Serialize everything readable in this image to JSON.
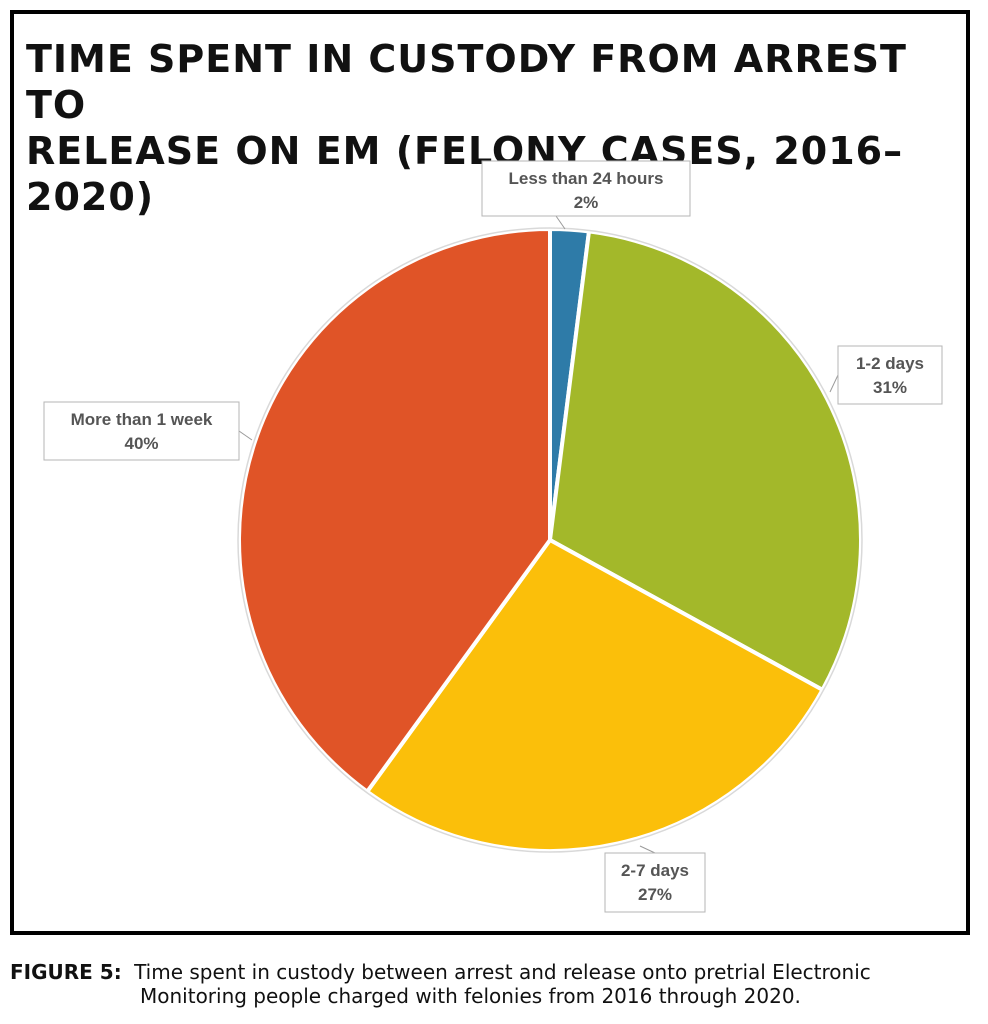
{
  "figure": {
    "title_line1": "TIME SPENT IN CUSTODY FROM ARREST TO",
    "title_line2": "RELEASE ON EM (FELONY CASES, 2016–2020)",
    "caption_label": "FIGURE 5:",
    "caption_line1": "Time spent in custody between arrest and release onto pretrial Electronic",
    "caption_line2": "Monitoring people charged with felonies from 2016 through 2020."
  },
  "chart_data": {
    "type": "pie",
    "title": "TIME SPENT IN CUSTODY FROM ARREST TO RELEASE ON EM (FELONY CASES, 2016–2020)",
    "slices": [
      {
        "label": "Less than 24 hours",
        "value": 2,
        "value_label": "2%",
        "color": "#2e7ba8"
      },
      {
        "label": "1-2 days",
        "value": 31,
        "value_label": "31%",
        "color": "#a3b82a"
      },
      {
        "label": "2-7 days",
        "value": 27,
        "value_label": "27%",
        "color": "#fbbf0a"
      },
      {
        "label": "More than 1 week",
        "value": 40,
        "value_label": "40%",
        "color": "#e05427"
      }
    ],
    "start": "12 o'clock",
    "direction": "clockwise",
    "legend": "none",
    "label_color": "#555555"
  }
}
